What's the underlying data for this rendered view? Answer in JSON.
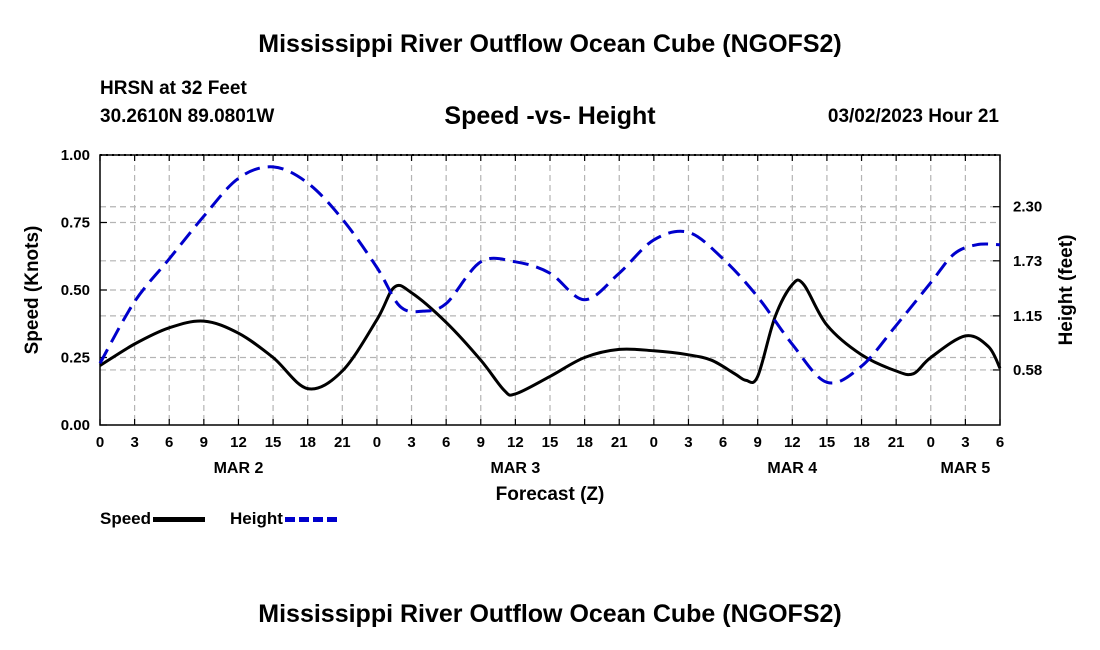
{
  "header": {
    "title": "Mississippi River Outflow Ocean Cube (NGOFS2)",
    "station": "HRSN at 32 Feet",
    "coords": "30.2610N  89.0801W",
    "subtitle": "Speed -vs- Height",
    "timestamp": "03/02/2023 Hour 21"
  },
  "footer": {
    "title": "Mississippi River Outflow Ocean Cube (NGOFS2)"
  },
  "legend": {
    "speed_label": "Speed",
    "height_label": "Height"
  },
  "colors": {
    "speed": "#000000",
    "height": "#0000cc",
    "grid": "#b4b4b4"
  },
  "chart_data": {
    "type": "line",
    "title": "Speed -vs- Height",
    "xlabel": "Forecast (Z)",
    "ylabel": "Speed (Knots)",
    "ylabel_right": "Height (feet)",
    "xlim": [
      0,
      78
    ],
    "ylim": [
      0,
      1.0
    ],
    "ylim_right": [
      0,
      2.845
    ],
    "grid": true,
    "x_ticks": [
      {
        "x": 0,
        "label": "0"
      },
      {
        "x": 3,
        "label": "3"
      },
      {
        "x": 6,
        "label": "6"
      },
      {
        "x": 9,
        "label": "9"
      },
      {
        "x": 12,
        "label": "12"
      },
      {
        "x": 15,
        "label": "15"
      },
      {
        "x": 18,
        "label": "18"
      },
      {
        "x": 21,
        "label": "21"
      },
      {
        "x": 24,
        "label": "0"
      },
      {
        "x": 27,
        "label": "3"
      },
      {
        "x": 30,
        "label": "6"
      },
      {
        "x": 33,
        "label": "9"
      },
      {
        "x": 36,
        "label": "12"
      },
      {
        "x": 39,
        "label": "15"
      },
      {
        "x": 42,
        "label": "18"
      },
      {
        "x": 45,
        "label": "21"
      },
      {
        "x": 48,
        "label": "0"
      },
      {
        "x": 51,
        "label": "3"
      },
      {
        "x": 54,
        "label": "6"
      },
      {
        "x": 57,
        "label": "9"
      },
      {
        "x": 60,
        "label": "12"
      },
      {
        "x": 63,
        "label": "15"
      },
      {
        "x": 66,
        "label": "18"
      },
      {
        "x": 69,
        "label": "21"
      },
      {
        "x": 72,
        "label": "0"
      },
      {
        "x": 75,
        "label": "3"
      },
      {
        "x": 78,
        "label": "6"
      }
    ],
    "date_labels": [
      {
        "x": 12,
        "label": "MAR 2"
      },
      {
        "x": 36,
        "label": "MAR 3"
      },
      {
        "x": 60,
        "label": "MAR 4"
      },
      {
        "x": 75,
        "label": "MAR 5"
      }
    ],
    "y_ticks_left": [
      {
        "v": 0.0,
        "label": "0.00"
      },
      {
        "v": 0.25,
        "label": "0.25"
      },
      {
        "v": 0.5,
        "label": "0.50"
      },
      {
        "v": 0.75,
        "label": "0.75"
      },
      {
        "v": 1.0,
        "label": "1.00"
      }
    ],
    "y_ticks_right": [
      {
        "v": 0.58,
        "label": "0.58"
      },
      {
        "v": 1.15,
        "label": "1.15"
      },
      {
        "v": 1.73,
        "label": "1.73"
      },
      {
        "v": 2.3,
        "label": "2.30"
      }
    ],
    "series": [
      {
        "name": "Speed",
        "axis": "left",
        "style": "solid",
        "x": [
          0,
          3,
          6,
          9,
          12,
          15,
          18,
          21,
          24,
          25.5,
          27,
          30,
          33,
          35,
          36,
          39,
          42,
          45,
          48,
          51,
          53,
          55,
          56,
          57,
          58.5,
          60,
          61,
          63,
          66,
          69,
          70.5,
          72,
          75,
          77,
          78
        ],
        "y": [
          0.22,
          0.3,
          0.36,
          0.385,
          0.34,
          0.25,
          0.135,
          0.2,
          0.39,
          0.51,
          0.49,
          0.38,
          0.24,
          0.13,
          0.115,
          0.18,
          0.25,
          0.28,
          0.275,
          0.26,
          0.24,
          0.19,
          0.165,
          0.18,
          0.4,
          0.52,
          0.52,
          0.37,
          0.26,
          0.2,
          0.19,
          0.25,
          0.33,
          0.29,
          0.21
        ]
      },
      {
        "name": "Height",
        "axis": "right",
        "style": "dashed",
        "x": [
          0,
          3,
          6,
          9,
          12,
          15,
          18,
          21,
          24,
          26,
          28,
          30,
          33,
          36,
          39,
          42,
          45,
          48,
          51,
          54,
          57,
          60,
          63,
          66,
          69,
          72,
          74,
          76,
          78
        ],
        "y": [
          0.65,
          1.3,
          1.75,
          2.2,
          2.6,
          2.72,
          2.55,
          2.17,
          1.66,
          1.25,
          1.2,
          1.28,
          1.72,
          1.72,
          1.6,
          1.32,
          1.6,
          1.95,
          2.03,
          1.75,
          1.35,
          0.85,
          0.45,
          0.62,
          1.05,
          1.5,
          1.8,
          1.9,
          1.9
        ]
      }
    ]
  }
}
